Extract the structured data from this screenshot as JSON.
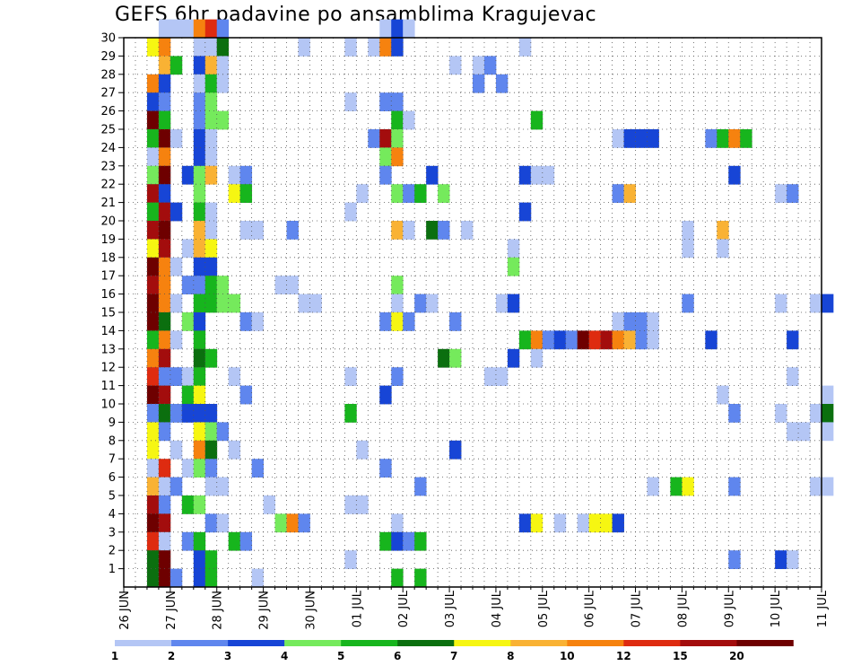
{
  "title": "GEFS 6hr padavine po ansamblima Kragujevac",
  "chart_data": {
    "type": "heatmap",
    "title": "GEFS 6hr padavine po ansamblima Kragujevac",
    "x_tick_labels": [
      "26 JUN",
      "27 JUN",
      "28 JUN",
      "29 JUN",
      "30 JUN",
      "01 JUL",
      "02 JUL",
      "03 JUL",
      "04 JUL",
      "05 JUL",
      "06 JUL",
      "07 JUL",
      "08 JUL",
      "09 JUL",
      "10 JUL",
      "11 JUL"
    ],
    "y_tick_labels": [
      "1",
      "2",
      "3",
      "4",
      "5",
      "6",
      "7",
      "8",
      "9",
      "10",
      "11",
      "12",
      "13",
      "14",
      "15",
      "16",
      "17",
      "18",
      "19",
      "20",
      "21",
      "22",
      "23",
      "24",
      "25",
      "26",
      "27",
      "28",
      "29",
      "30"
    ],
    "x_unit": "6-hour step (4 per day)",
    "x_range": [
      0,
      60
    ],
    "y_range": [
      0,
      30
    ],
    "grid": true,
    "legend_position": "bottom",
    "legend_labels": [
      "1",
      "2",
      "3",
      "4",
      "5",
      "6",
      "7",
      "8",
      "10",
      "12",
      "15",
      "20"
    ],
    "level_colors": [
      "#b4c6f5",
      "#5f86ee",
      "#1745d6",
      "#75ea5c",
      "#17b51d",
      "#0b6f0f",
      "#f6f612",
      "#f9b234",
      "#f6820f",
      "#de2b10",
      "#a30d0d",
      "#6e0000"
    ],
    "series_note": "cells: [step, member, level] where level 1..12 indexes level_colors",
    "cells": [
      [
        3,
        30,
        1
      ],
      [
        4,
        30,
        1
      ],
      [
        5,
        30,
        1
      ],
      [
        6,
        30,
        9
      ],
      [
        7,
        30,
        10
      ],
      [
        8,
        30,
        2
      ],
      [
        22,
        30,
        1
      ],
      [
        23,
        30,
        3
      ],
      [
        24,
        30,
        1
      ],
      [
        2,
        29,
        7
      ],
      [
        3,
        29,
        9
      ],
      [
        6,
        29,
        1
      ],
      [
        7,
        29,
        1
      ],
      [
        8,
        29,
        6
      ],
      [
        15,
        29,
        1
      ],
      [
        19,
        29,
        1
      ],
      [
        21,
        29,
        1
      ],
      [
        22,
        29,
        9
      ],
      [
        23,
        29,
        3
      ],
      [
        34,
        29,
        1
      ],
      [
        3,
        28,
        8
      ],
      [
        4,
        28,
        5
      ],
      [
        6,
        28,
        3
      ],
      [
        7,
        28,
        8
      ],
      [
        8,
        28,
        1
      ],
      [
        28,
        28,
        1
      ],
      [
        30,
        28,
        1
      ],
      [
        31,
        28,
        2
      ],
      [
        2,
        27,
        9
      ],
      [
        3,
        27,
        3
      ],
      [
        6,
        27,
        1
      ],
      [
        7,
        27,
        5
      ],
      [
        8,
        27,
        1
      ],
      [
        30,
        27,
        2
      ],
      [
        32,
        27,
        2
      ],
      [
        2,
        26,
        3
      ],
      [
        3,
        26,
        2
      ],
      [
        6,
        26,
        2
      ],
      [
        7,
        26,
        4
      ],
      [
        19,
        26,
        1
      ],
      [
        22,
        26,
        2
      ],
      [
        23,
        26,
        2
      ],
      [
        2,
        25,
        12
      ],
      [
        3,
        25,
        5
      ],
      [
        6,
        25,
        2
      ],
      [
        7,
        25,
        4
      ],
      [
        8,
        25,
        4
      ],
      [
        23,
        25,
        5
      ],
      [
        24,
        25,
        1
      ],
      [
        35,
        25,
        5
      ],
      [
        2,
        24,
        5
      ],
      [
        3,
        24,
        12
      ],
      [
        4,
        24,
        1
      ],
      [
        6,
        24,
        3
      ],
      [
        7,
        24,
        1
      ],
      [
        21,
        24,
        2
      ],
      [
        22,
        24,
        11
      ],
      [
        23,
        24,
        4
      ],
      [
        42,
        24,
        1
      ],
      [
        43,
        24,
        3
      ],
      [
        44,
        24,
        3
      ],
      [
        45,
        24,
        3
      ],
      [
        50,
        24,
        2
      ],
      [
        51,
        24,
        5
      ],
      [
        52,
        24,
        9
      ],
      [
        53,
        24,
        5
      ],
      [
        2,
        23,
        1
      ],
      [
        3,
        23,
        9
      ],
      [
        6,
        23,
        3
      ],
      [
        7,
        23,
        1
      ],
      [
        22,
        23,
        4
      ],
      [
        23,
        23,
        9
      ],
      [
        2,
        22,
        4
      ],
      [
        3,
        22,
        12
      ],
      [
        5,
        22,
        3
      ],
      [
        6,
        22,
        4
      ],
      [
        7,
        22,
        8
      ],
      [
        9,
        22,
        1
      ],
      [
        10,
        22,
        2
      ],
      [
        22,
        22,
        2
      ],
      [
        26,
        22,
        3
      ],
      [
        34,
        22,
        3
      ],
      [
        35,
        22,
        1
      ],
      [
        36,
        22,
        1
      ],
      [
        52,
        22,
        3
      ],
      [
        2,
        21,
        11
      ],
      [
        3,
        21,
        3
      ],
      [
        6,
        21,
        4
      ],
      [
        9,
        21,
        7
      ],
      [
        10,
        21,
        5
      ],
      [
        20,
        21,
        1
      ],
      [
        23,
        21,
        4
      ],
      [
        24,
        21,
        2
      ],
      [
        25,
        21,
        5
      ],
      [
        27,
        21,
        4
      ],
      [
        42,
        21,
        2
      ],
      [
        43,
        21,
        8
      ],
      [
        56,
        21,
        1
      ],
      [
        57,
        21,
        2
      ],
      [
        2,
        20,
        5
      ],
      [
        3,
        20,
        11
      ],
      [
        4,
        20,
        3
      ],
      [
        6,
        20,
        5
      ],
      [
        7,
        20,
        1
      ],
      [
        19,
        20,
        1
      ],
      [
        34,
        20,
        3
      ],
      [
        2,
        19,
        11
      ],
      [
        3,
        19,
        12
      ],
      [
        6,
        19,
        8
      ],
      [
        7,
        19,
        1
      ],
      [
        10,
        19,
        1
      ],
      [
        11,
        19,
        1
      ],
      [
        14,
        19,
        2
      ],
      [
        23,
        19,
        8
      ],
      [
        24,
        19,
        1
      ],
      [
        26,
        19,
        6
      ],
      [
        27,
        19,
        2
      ],
      [
        29,
        19,
        1
      ],
      [
        48,
        19,
        1
      ],
      [
        51,
        19,
        8
      ],
      [
        2,
        18,
        7
      ],
      [
        3,
        18,
        11
      ],
      [
        5,
        18,
        1
      ],
      [
        6,
        18,
        8
      ],
      [
        7,
        18,
        7
      ],
      [
        33,
        18,
        1
      ],
      [
        48,
        18,
        1
      ],
      [
        51,
        18,
        1
      ],
      [
        2,
        17,
        12
      ],
      [
        3,
        17,
        9
      ],
      [
        4,
        17,
        1
      ],
      [
        6,
        17,
        3
      ],
      [
        7,
        17,
        3
      ],
      [
        33,
        17,
        4
      ],
      [
        2,
        16,
        11
      ],
      [
        3,
        16,
        9
      ],
      [
        5,
        16,
        2
      ],
      [
        6,
        16,
        2
      ],
      [
        7,
        16,
        5
      ],
      [
        8,
        16,
        4
      ],
      [
        13,
        16,
        1
      ],
      [
        14,
        16,
        1
      ],
      [
        23,
        16,
        4
      ],
      [
        2,
        15,
        12
      ],
      [
        3,
        15,
        9
      ],
      [
        4,
        15,
        1
      ],
      [
        6,
        15,
        5
      ],
      [
        7,
        15,
        5
      ],
      [
        8,
        15,
        4
      ],
      [
        9,
        15,
        4
      ],
      [
        15,
        15,
        1
      ],
      [
        16,
        15,
        1
      ],
      [
        23,
        15,
        1
      ],
      [
        25,
        15,
        2
      ],
      [
        26,
        15,
        1
      ],
      [
        32,
        15,
        1
      ],
      [
        33,
        15,
        3
      ],
      [
        48,
        15,
        2
      ],
      [
        56,
        15,
        1
      ],
      [
        59,
        15,
        1
      ],
      [
        60,
        15,
        3
      ],
      [
        2,
        14,
        12
      ],
      [
        3,
        14,
        6
      ],
      [
        5,
        14,
        4
      ],
      [
        6,
        14,
        3
      ],
      [
        10,
        14,
        2
      ],
      [
        11,
        14,
        1
      ],
      [
        22,
        14,
        2
      ],
      [
        23,
        14,
        7
      ],
      [
        24,
        14,
        2
      ],
      [
        28,
        14,
        2
      ],
      [
        42,
        14,
        1
      ],
      [
        43,
        14,
        2
      ],
      [
        44,
        14,
        2
      ],
      [
        45,
        14,
        1
      ],
      [
        2,
        13,
        5
      ],
      [
        3,
        13,
        9
      ],
      [
        4,
        13,
        1
      ],
      [
        6,
        13,
        5
      ],
      [
        34,
        13,
        5
      ],
      [
        35,
        13,
        9
      ],
      [
        36,
        13,
        2
      ],
      [
        37,
        13,
        3
      ],
      [
        38,
        13,
        2
      ],
      [
        39,
        13,
        12
      ],
      [
        40,
        13,
        10
      ],
      [
        41,
        13,
        11
      ],
      [
        42,
        13,
        9
      ],
      [
        43,
        13,
        8
      ],
      [
        44,
        13,
        2
      ],
      [
        45,
        13,
        1
      ],
      [
        50,
        13,
        3
      ],
      [
        57,
        13,
        3
      ],
      [
        2,
        12,
        9
      ],
      [
        3,
        12,
        11
      ],
      [
        6,
        12,
        6
      ],
      [
        7,
        12,
        5
      ],
      [
        27,
        12,
        6
      ],
      [
        28,
        12,
        4
      ],
      [
        33,
        12,
        3
      ],
      [
        35,
        12,
        1
      ],
      [
        2,
        11,
        10
      ],
      [
        3,
        11,
        2
      ],
      [
        4,
        11,
        2
      ],
      [
        5,
        11,
        1
      ],
      [
        6,
        11,
        5
      ],
      [
        9,
        11,
        1
      ],
      [
        19,
        11,
        1
      ],
      [
        23,
        11,
        2
      ],
      [
        31,
        11,
        1
      ],
      [
        32,
        11,
        1
      ],
      [
        57,
        11,
        1
      ],
      [
        2,
        10,
        12
      ],
      [
        3,
        10,
        11
      ],
      [
        5,
        10,
        5
      ],
      [
        6,
        10,
        7
      ],
      [
        10,
        10,
        2
      ],
      [
        22,
        10,
        3
      ],
      [
        51,
        10,
        1
      ],
      [
        60,
        10,
        1
      ],
      [
        2,
        9,
        2
      ],
      [
        3,
        9,
        6
      ],
      [
        4,
        9,
        2
      ],
      [
        5,
        9,
        3
      ],
      [
        6,
        9,
        3
      ],
      [
        7,
        9,
        3
      ],
      [
        19,
        9,
        5
      ],
      [
        52,
        9,
        2
      ],
      [
        56,
        9,
        1
      ],
      [
        59,
        9,
        1
      ],
      [
        60,
        9,
        6
      ],
      [
        2,
        8,
        7
      ],
      [
        3,
        8,
        2
      ],
      [
        6,
        8,
        7
      ],
      [
        7,
        8,
        4
      ],
      [
        8,
        8,
        2
      ],
      [
        57,
        8,
        1
      ],
      [
        58,
        8,
        1
      ],
      [
        60,
        8,
        1
      ],
      [
        2,
        7,
        7
      ],
      [
        4,
        7,
        1
      ],
      [
        6,
        7,
        9
      ],
      [
        7,
        7,
        6
      ],
      [
        9,
        7,
        1
      ],
      [
        20,
        7,
        1
      ],
      [
        28,
        7,
        3
      ],
      [
        2,
        6,
        1
      ],
      [
        3,
        6,
        10
      ],
      [
        5,
        6,
        1
      ],
      [
        6,
        6,
        4
      ],
      [
        7,
        6,
        2
      ],
      [
        11,
        6,
        2
      ],
      [
        22,
        6,
        2
      ],
      [
        2,
        5,
        8
      ],
      [
        3,
        5,
        1
      ],
      [
        4,
        5,
        2
      ],
      [
        7,
        5,
        1
      ],
      [
        8,
        5,
        1
      ],
      [
        25,
        5,
        2
      ],
      [
        45,
        5,
        1
      ],
      [
        47,
        5,
        5
      ],
      [
        48,
        5,
        7
      ],
      [
        52,
        5,
        2
      ],
      [
        59,
        5,
        1
      ],
      [
        60,
        5,
        1
      ],
      [
        2,
        4,
        11
      ],
      [
        3,
        4,
        2
      ],
      [
        5,
        4,
        5
      ],
      [
        6,
        4,
        4
      ],
      [
        12,
        4,
        1
      ],
      [
        19,
        4,
        1
      ],
      [
        20,
        4,
        1
      ],
      [
        2,
        3,
        12
      ],
      [
        3,
        3,
        11
      ],
      [
        7,
        3,
        2
      ],
      [
        8,
        3,
        1
      ],
      [
        13,
        3,
        4
      ],
      [
        14,
        3,
        9
      ],
      [
        15,
        3,
        2
      ],
      [
        23,
        3,
        1
      ],
      [
        34,
        3,
        3
      ],
      [
        35,
        3,
        7
      ],
      [
        37,
        3,
        1
      ],
      [
        39,
        3,
        1
      ],
      [
        40,
        3,
        7
      ],
      [
        41,
        3,
        7
      ],
      [
        42,
        3,
        3
      ],
      [
        2,
        2,
        10
      ],
      [
        3,
        2,
        1
      ],
      [
        5,
        2,
        2
      ],
      [
        6,
        2,
        5
      ],
      [
        9,
        2,
        5
      ],
      [
        10,
        2,
        2
      ],
      [
        22,
        2,
        5
      ],
      [
        23,
        2,
        3
      ],
      [
        24,
        2,
        2
      ],
      [
        25,
        2,
        5
      ],
      [
        2,
        1,
        6
      ],
      [
        3,
        1,
        12
      ],
      [
        6,
        1,
        3
      ],
      [
        7,
        1,
        5
      ],
      [
        19,
        1,
        1
      ],
      [
        52,
        1,
        2
      ],
      [
        56,
        1,
        3
      ],
      [
        57,
        1,
        1
      ],
      [
        2,
        0,
        6
      ],
      [
        3,
        0,
        12
      ],
      [
        4,
        0,
        2
      ],
      [
        6,
        0,
        3
      ],
      [
        7,
        0,
        5
      ],
      [
        11,
        0,
        1
      ],
      [
        23,
        0,
        5
      ],
      [
        25,
        0,
        5
      ]
    ]
  }
}
